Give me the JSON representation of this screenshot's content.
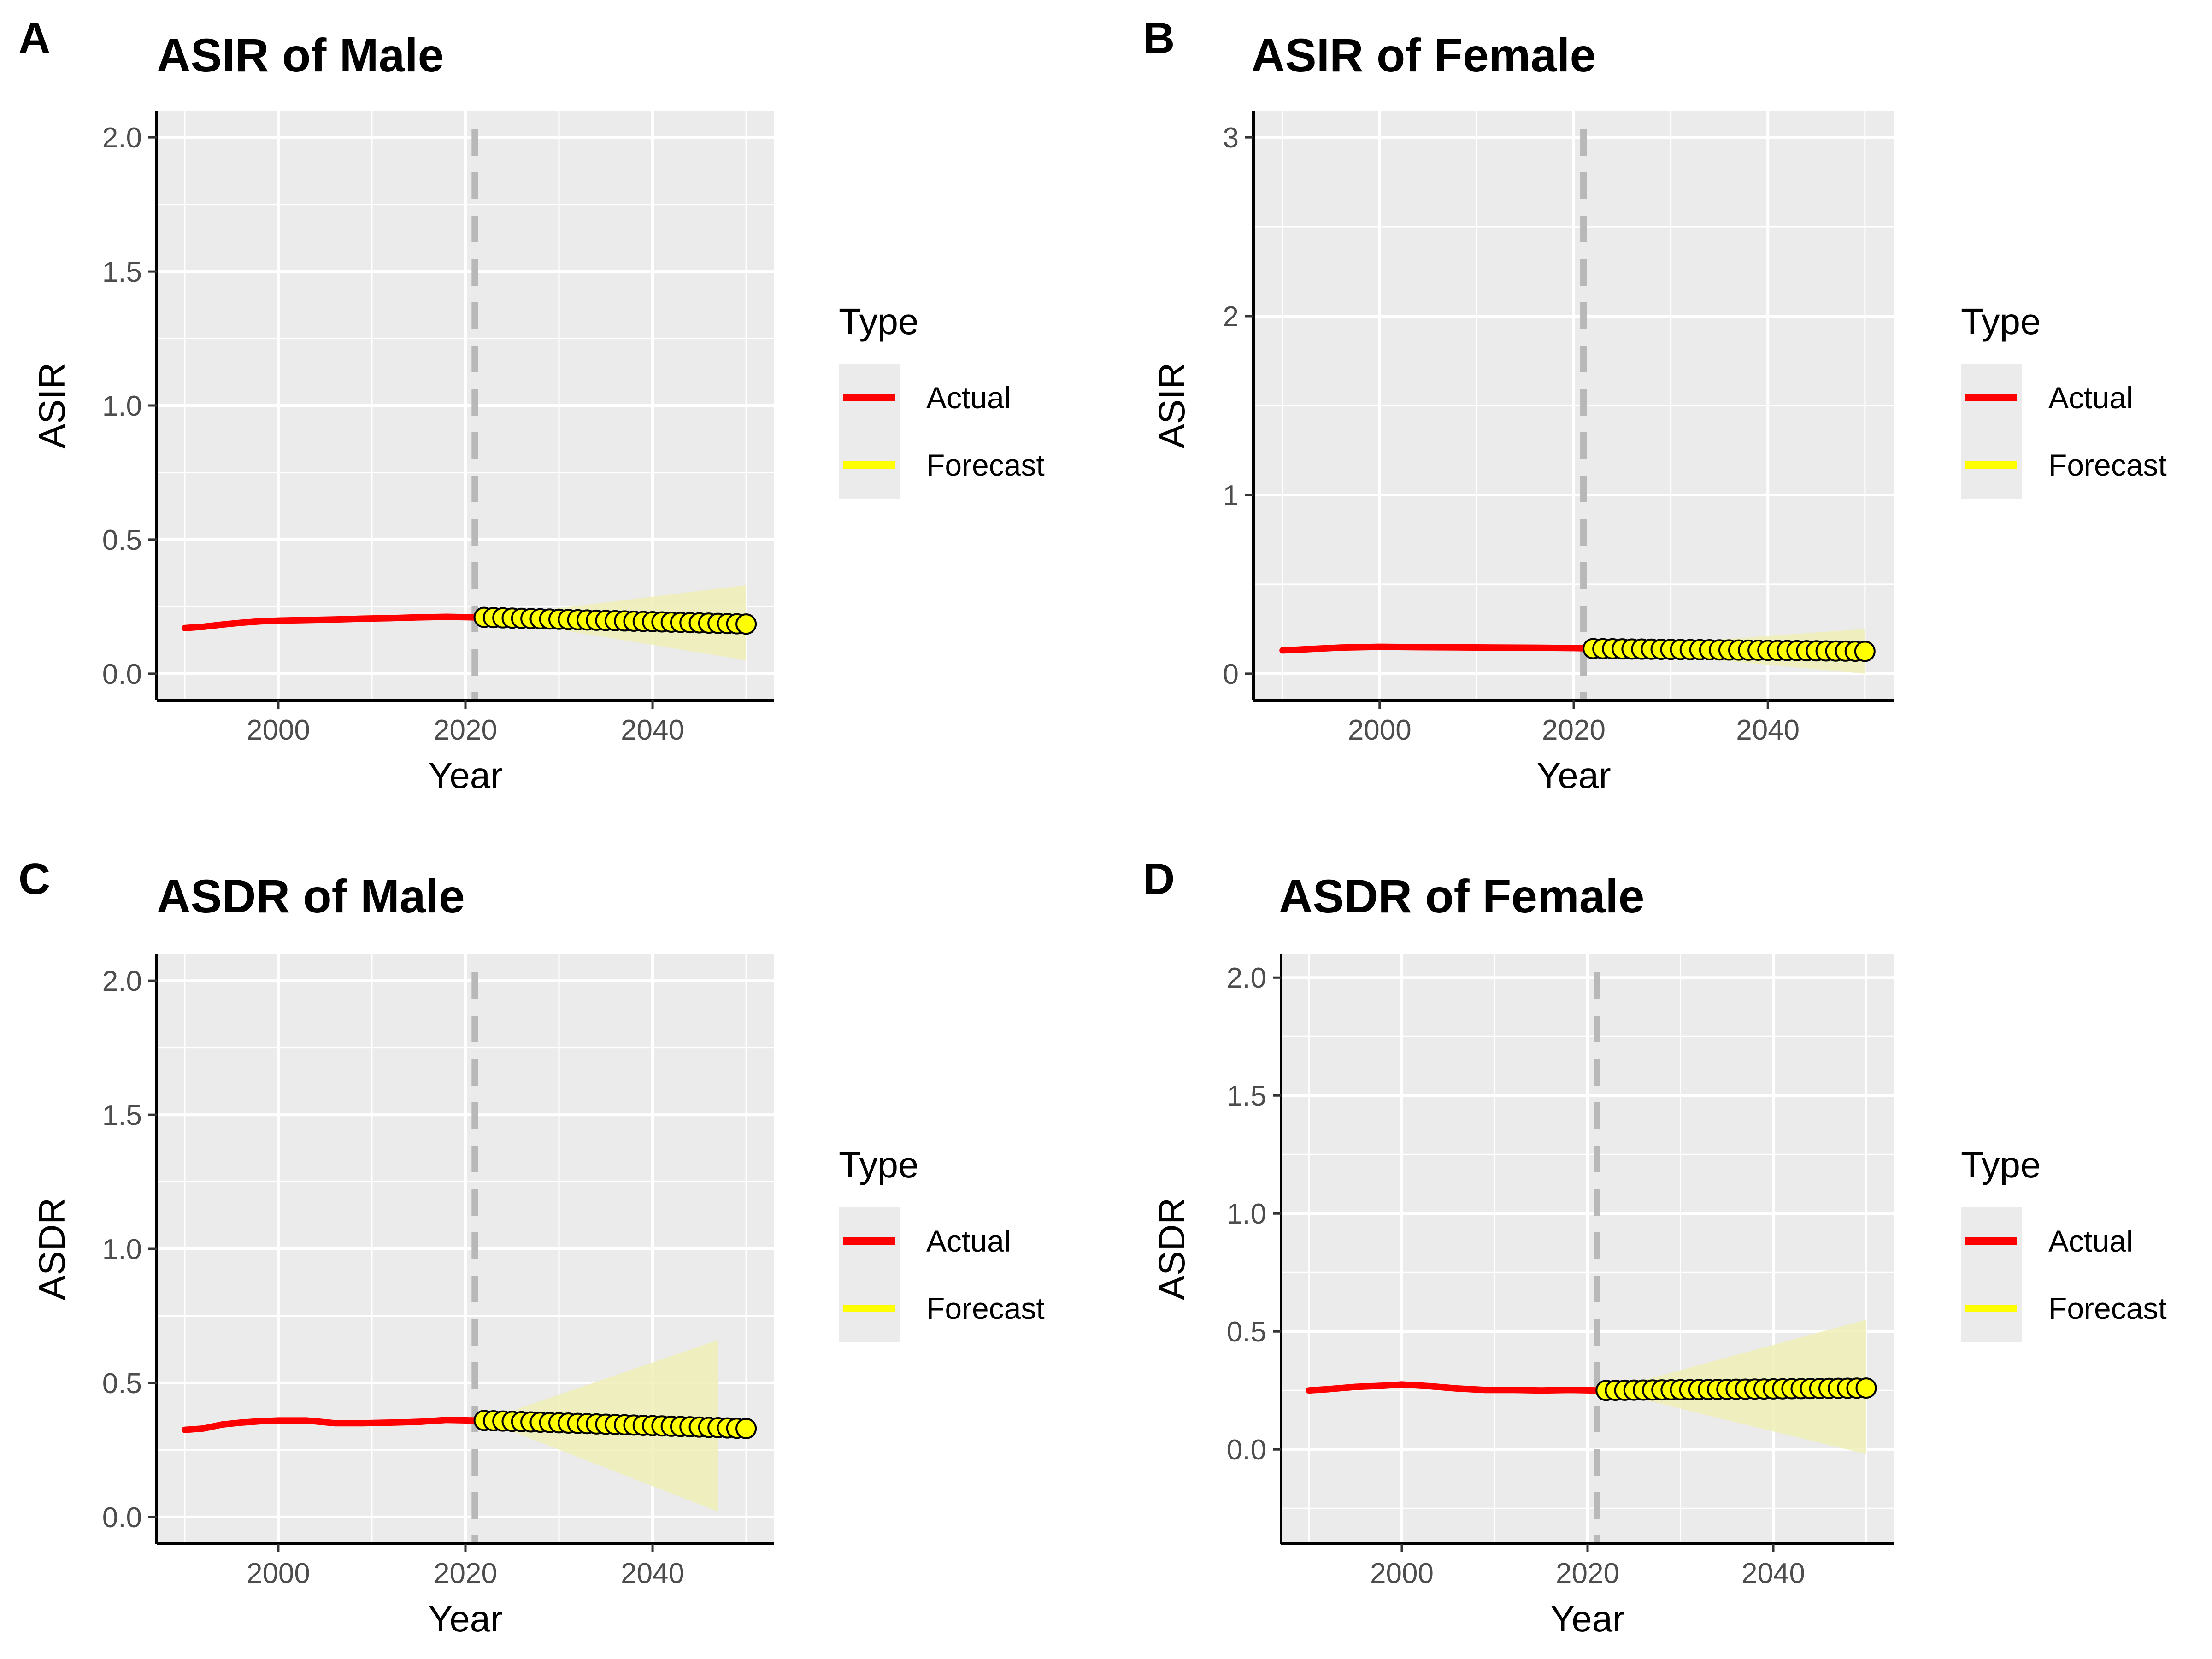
{
  "colors": {
    "actual": "#ff0000",
    "forecast": "#ffff00",
    "ribbon": "#f0eeb6",
    "panel_bg": "#ebebeb",
    "grid": "#ffffff",
    "vline": "#b8b8b8",
    "point_stroke": "#000000"
  },
  "chart_data": [
    {
      "letter": "A",
      "type": "line",
      "title": "ASIR of Male",
      "xlabel": "Year",
      "ylabel": "ASIR",
      "xlim": [
        1987,
        2053
      ],
      "ylim": [
        -0.1,
        2.1
      ],
      "xticks": [
        2000,
        2020,
        2040
      ],
      "yticks": [
        0.0,
        0.5,
        1.0,
        1.5,
        2.0
      ],
      "ytick_labels": [
        "0.0",
        "0.5",
        "1.0",
        "1.5",
        "2.0"
      ],
      "vline_x": 2021,
      "legend": {
        "title": "Type",
        "position": "right",
        "entries": [
          "Actual",
          "Forecast"
        ]
      },
      "actual": {
        "x": [
          1990,
          1992,
          1994,
          1996,
          1998,
          2000,
          2003,
          2006,
          2009,
          2012,
          2015,
          2018,
          2021
        ],
        "y": [
          0.17,
          0.175,
          0.183,
          0.19,
          0.195,
          0.198,
          0.2,
          0.202,
          0.205,
          0.207,
          0.21,
          0.212,
          0.21
        ]
      },
      "forecast": {
        "x_start": 2022,
        "x_end": 2050,
        "y_start": 0.21,
        "y_end": 0.185,
        "lower_end": 0.05,
        "upper_end": 0.33
      }
    },
    {
      "letter": "B",
      "type": "line",
      "title": "ASIR of Female",
      "xlabel": "Year",
      "ylabel": "ASIR",
      "xlim": [
        1987,
        2053
      ],
      "ylim": [
        -0.15,
        3.15
      ],
      "xticks": [
        2000,
        2020,
        2040
      ],
      "yticks": [
        0,
        1,
        2,
        3
      ],
      "ytick_labels": [
        "0",
        "1",
        "2",
        "3"
      ],
      "vline_x": 2021,
      "legend": {
        "title": "Type",
        "position": "right",
        "entries": [
          "Actual",
          "Forecast"
        ]
      },
      "actual": {
        "x": [
          1990,
          1993,
          1996,
          2000,
          2004,
          2008,
          2012,
          2016,
          2020,
          2021
        ],
        "y": [
          0.13,
          0.138,
          0.146,
          0.15,
          0.148,
          0.147,
          0.146,
          0.145,
          0.143,
          0.142
        ]
      },
      "forecast": {
        "x_start": 2022,
        "x_end": 2050,
        "y_start": 0.14,
        "y_end": 0.125,
        "lower_end": 0.0,
        "upper_end": 0.25
      }
    },
    {
      "letter": "C",
      "type": "line",
      "title": "ASDR of Male",
      "xlabel": "Year",
      "ylabel": "ASDR",
      "xlim": [
        1987,
        2053
      ],
      "ylim": [
        -0.1,
        2.1
      ],
      "xticks": [
        2000,
        2020,
        2040
      ],
      "yticks": [
        0.0,
        0.5,
        1.0,
        1.5,
        2.0
      ],
      "ytick_labels": [
        "0.0",
        "0.5",
        "1.0",
        "1.5",
        "2.0"
      ],
      "vline_x": 2021,
      "legend": {
        "title": "Type",
        "position": "right",
        "entries": [
          "Actual",
          "Forecast"
        ]
      },
      "actual": {
        "x": [
          1990,
          1992,
          1994,
          1996,
          1998,
          2000,
          2003,
          2006,
          2009,
          2012,
          2015,
          2018,
          2021
        ],
        "y": [
          0.325,
          0.33,
          0.345,
          0.352,
          0.357,
          0.36,
          0.36,
          0.35,
          0.35,
          0.352,
          0.355,
          0.362,
          0.36
        ]
      },
      "forecast": {
        "x_start": 2022,
        "x_end": 2050,
        "y_start": 0.36,
        "y_end": 0.33,
        "ribbon_x_end": 2047,
        "lower_end": 0.02,
        "upper_end": 0.66
      }
    },
    {
      "letter": "D",
      "type": "line",
      "title": "ASDR of Female",
      "xlabel": "Year",
      "ylabel": "ASDR",
      "xlim": [
        1987,
        2053
      ],
      "ylim": [
        -0.4,
        2.1
      ],
      "xticks": [
        2000,
        2020,
        2040
      ],
      "yticks": [
        0.0,
        0.5,
        1.0,
        1.5,
        2.0
      ],
      "ytick_labels": [
        "0.0",
        "0.5",
        "1.0",
        "1.5",
        "2.0"
      ],
      "vline_x": 2021,
      "legend": {
        "title": "Type",
        "position": "right",
        "entries": [
          "Actual",
          "Forecast"
        ]
      },
      "actual": {
        "x": [
          1990,
          1992,
          1995,
          1998,
          2000,
          2003,
          2006,
          2009,
          2012,
          2015,
          2018,
          2021
        ],
        "y": [
          0.25,
          0.255,
          0.265,
          0.27,
          0.275,
          0.268,
          0.258,
          0.252,
          0.252,
          0.25,
          0.252,
          0.25
        ]
      },
      "forecast": {
        "x_start": 2022,
        "x_end": 2050,
        "y_start": 0.25,
        "y_end": 0.26,
        "lower_end": -0.02,
        "upper_end": 0.55
      }
    }
  ]
}
